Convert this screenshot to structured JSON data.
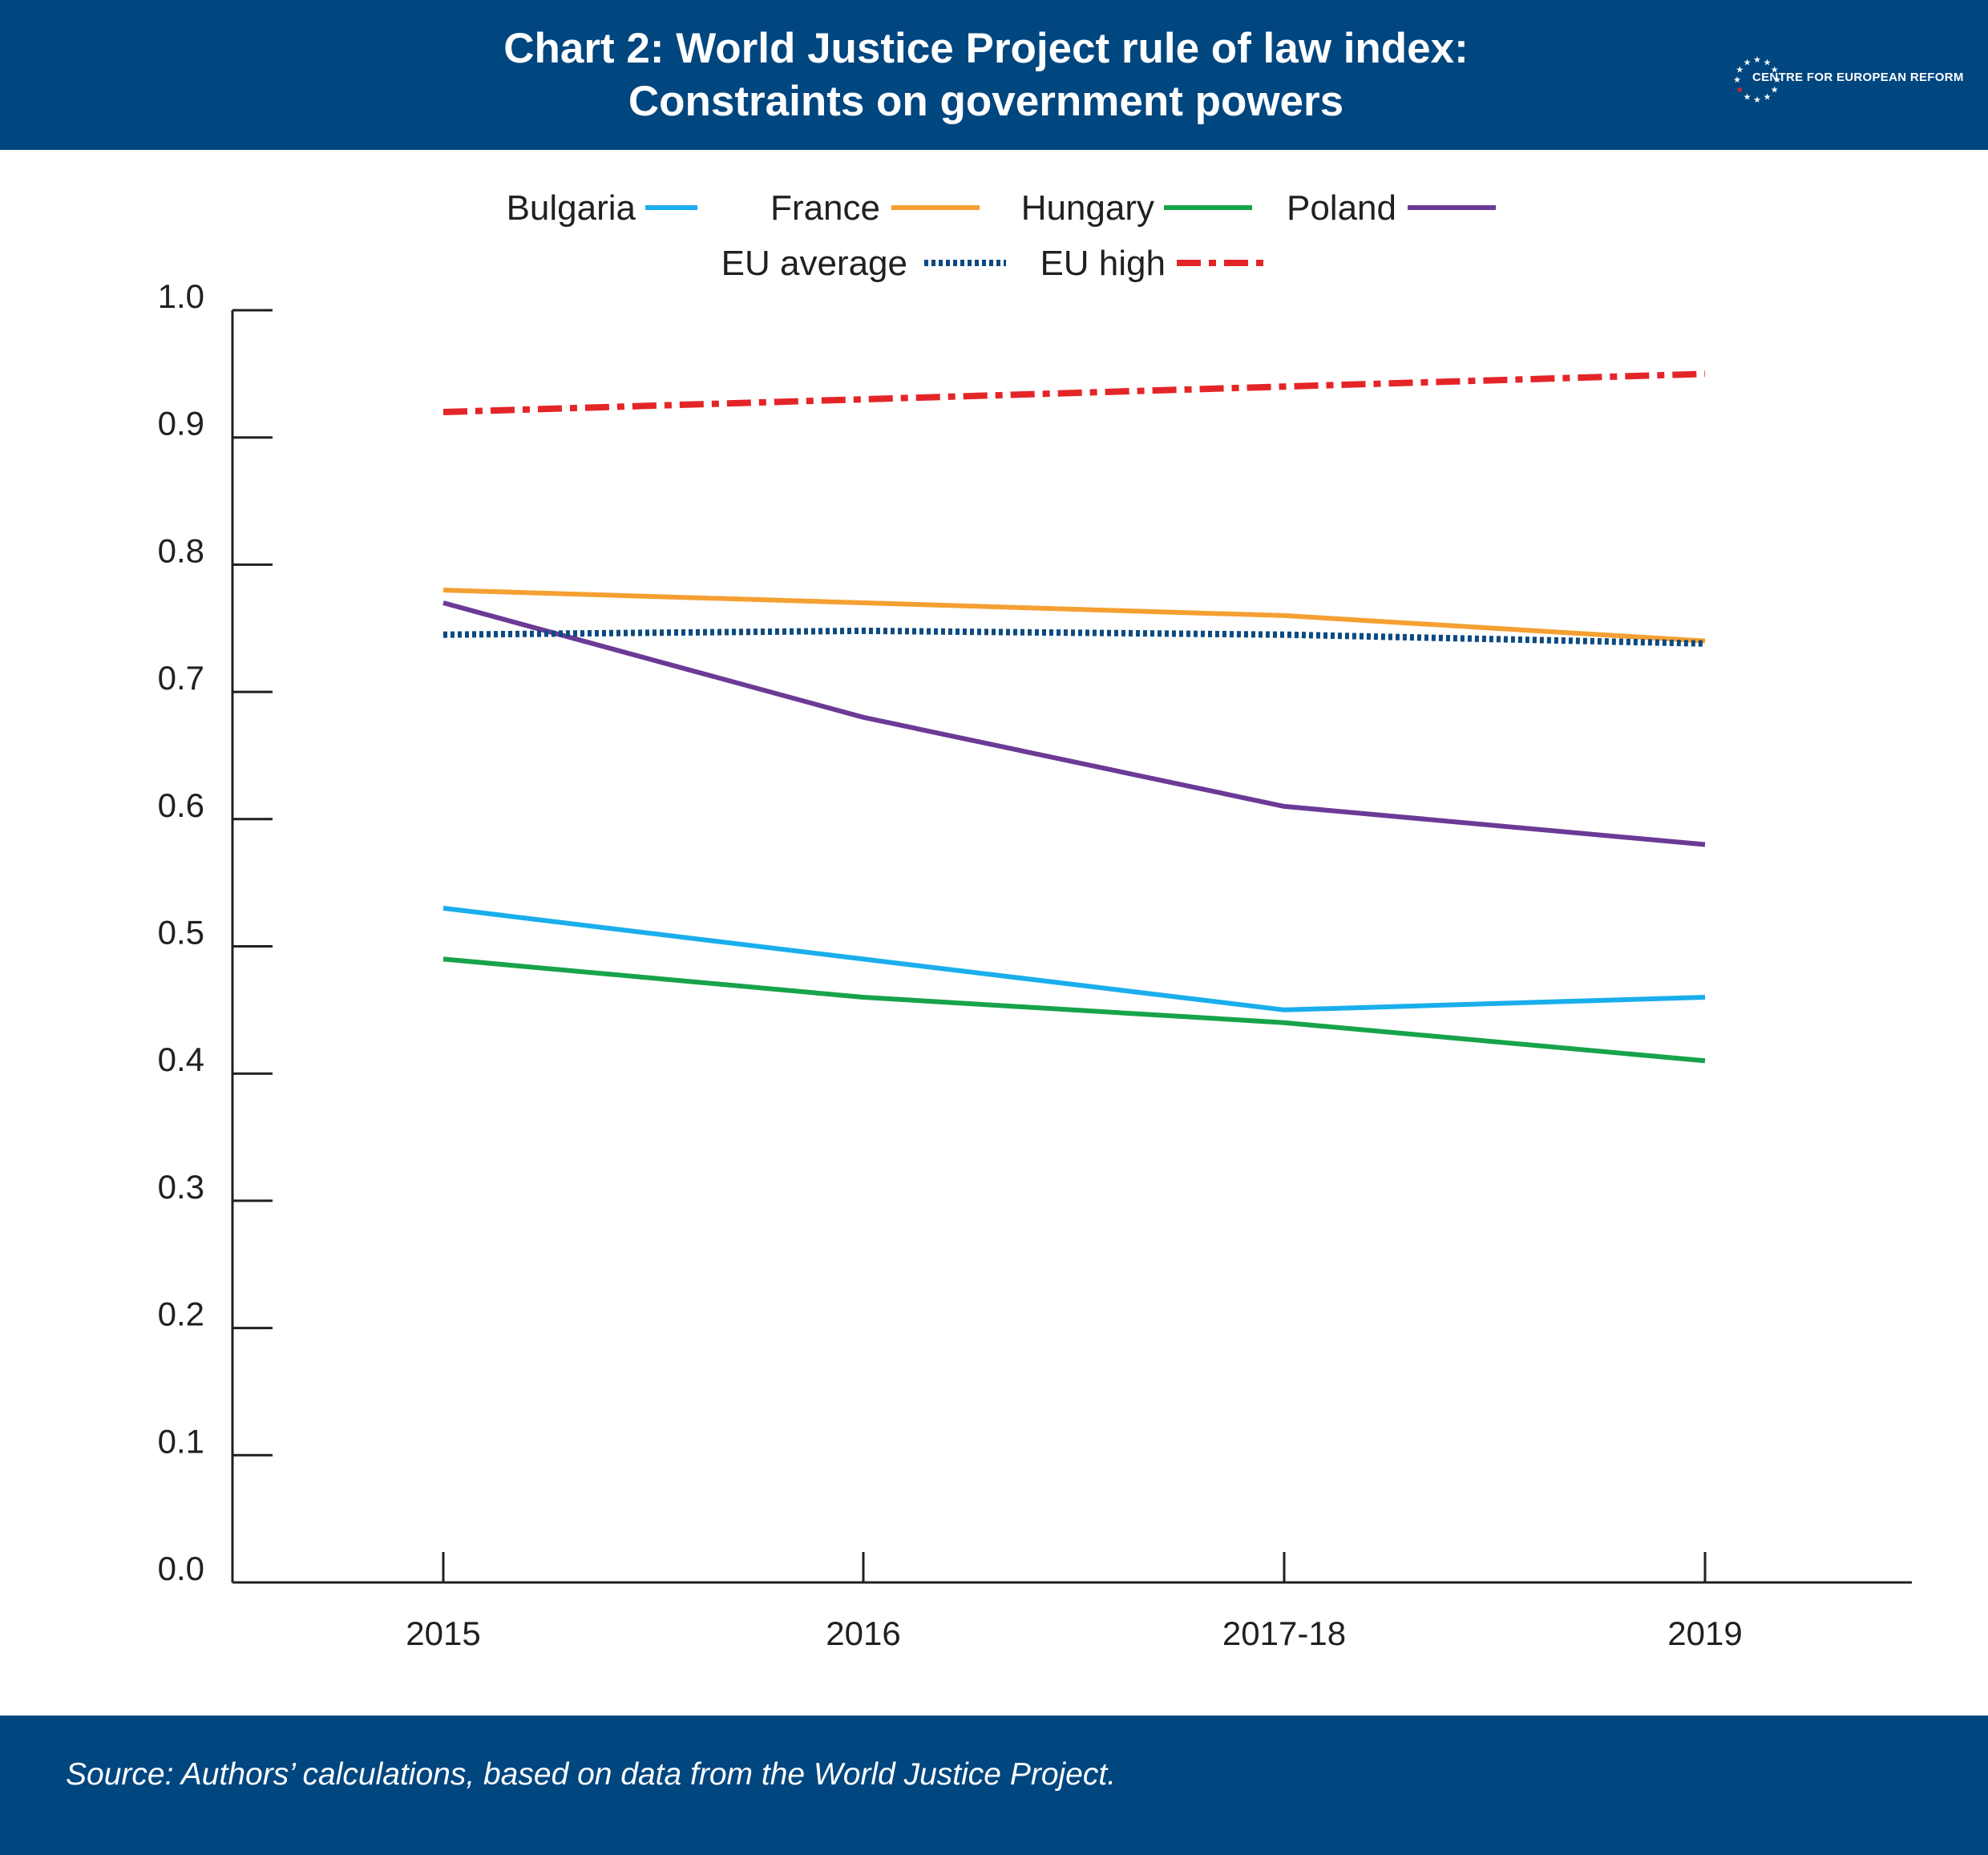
{
  "header": {
    "title_line1": "Chart 2: World Justice Project rule of law index:",
    "title_line2": "Constraints on government powers",
    "logo_text": "CENTRE FOR EUROPEAN REFORM"
  },
  "footer": {
    "source": "Source: Authors’ calculations, based on data from the World Justice Project."
  },
  "colors": {
    "brand": "#00467f",
    "Bulgaria": "#1aaeed",
    "France": "#f5a033",
    "Hungary": "#17a34a",
    "Poland": "#6b3a96",
    "EU average": "#0b4a82",
    "EU high": "#e42528"
  },
  "chart_data": {
    "type": "line",
    "title": "Chart 2: World Justice Project rule of law index: Constraints on government powers",
    "xlabel": "",
    "ylabel": "",
    "categories": [
      "2015",
      "2016",
      "2017-18",
      "2019"
    ],
    "ylim": [
      0.0,
      1.0
    ],
    "yticks": [
      "0.0",
      "0.1",
      "0.2",
      "0.3",
      "0.4",
      "0.5",
      "0.6",
      "0.7",
      "0.8",
      "0.9",
      "1.0"
    ],
    "legend_position": "top",
    "grid": false,
    "series": [
      {
        "name": "Bulgaria",
        "style": "solid",
        "values": [
          0.53,
          0.49,
          0.45,
          0.46
        ]
      },
      {
        "name": "France",
        "style": "solid",
        "values": [
          0.78,
          0.77,
          0.76,
          0.74
        ]
      },
      {
        "name": "Hungary",
        "style": "solid",
        "values": [
          0.49,
          0.46,
          0.44,
          0.41
        ]
      },
      {
        "name": "Poland",
        "style": "solid",
        "values": [
          0.77,
          0.68,
          0.61,
          0.58
        ]
      },
      {
        "name": "EU average",
        "style": "dotted",
        "values": [
          0.745,
          0.748,
          0.745,
          0.738
        ]
      },
      {
        "name": "EU high",
        "style": "dashdot",
        "values": [
          0.92,
          0.93,
          0.94,
          0.95
        ]
      }
    ]
  }
}
